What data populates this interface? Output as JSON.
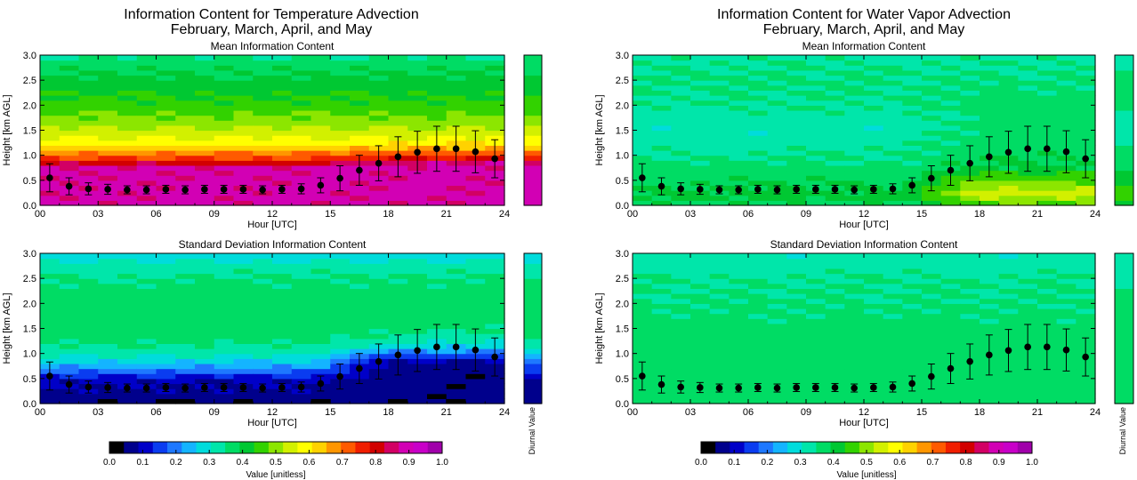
{
  "figure": {
    "left_title_line1": "Information Content for Temperature Advection",
    "left_title_line2": "February, March, April, and May",
    "right_title_line1": "Information Content for Water Vapor Advection",
    "right_title_line2": "February, March, April, and May",
    "mean_subtitle": "Mean Information Content",
    "std_subtitle": "Standard Deviation Information Content",
    "xlabel": "Hour [UTC]",
    "ylabel": "Height [km AGL]",
    "diurnal_label": "Diurnal Value",
    "colorbar_label": "Value [unitless]"
  },
  "chart_data": [
    {
      "type": "heatmap",
      "panel": "temperature-mean",
      "title": "Mean Information Content",
      "xlabel": "Hour [UTC]",
      "ylabel": "Height [km AGL]",
      "xlim": [
        0,
        24
      ],
      "ylim": [
        0,
        3
      ],
      "xticks": [
        "00",
        "03",
        "06",
        "09",
        "12",
        "15",
        "18",
        "21",
        "24"
      ],
      "yticks": [
        "0.0",
        "0.5",
        "1.0",
        "1.5",
        "2.0",
        "2.5",
        "3.0"
      ],
      "height_profile": {
        "heights": [
          0.0,
          0.25,
          0.5,
          0.75,
          0.85,
          0.95,
          1.05,
          1.15,
          1.25,
          1.4,
          1.6,
          1.8,
          2.0,
          2.25,
          2.5,
          2.75,
          3.0
        ],
        "early_values": [
          0.92,
          0.92,
          0.92,
          0.92,
          0.85,
          0.77,
          0.72,
          0.66,
          0.62,
          0.58,
          0.54,
          0.5,
          0.47,
          0.45,
          0.42,
          0.4,
          0.36
        ],
        "late_values": [
          0.92,
          0.92,
          0.92,
          0.92,
          0.9,
          0.82,
          0.76,
          0.68,
          0.63,
          0.58,
          0.54,
          0.5,
          0.47,
          0.45,
          0.42,
          0.4,
          0.36
        ]
      },
      "series": [
        {
          "x": [
            0.5,
            1.5,
            2.5,
            3.5,
            4.5,
            5.5,
            6.5,
            7.5,
            8.5,
            9.5,
            10.5,
            11.5,
            12.5,
            13.5,
            14.5,
            15.5,
            16.5,
            17.5,
            18.5,
            19.5,
            20.5,
            21.5,
            22.5,
            23.5
          ],
          "y": [
            0.55,
            0.38,
            0.33,
            0.32,
            0.31,
            0.31,
            0.32,
            0.31,
            0.32,
            0.32,
            0.32,
            0.31,
            0.32,
            0.33,
            0.4,
            0.54,
            0.7,
            0.84,
            0.97,
            1.06,
            1.13,
            1.13,
            1.07,
            0.93
          ],
          "err": [
            0.28,
            0.17,
            0.12,
            0.1,
            0.08,
            0.08,
            0.08,
            0.08,
            0.08,
            0.08,
            0.08,
            0.08,
            0.08,
            0.1,
            0.15,
            0.25,
            0.3,
            0.35,
            0.4,
            0.42,
            0.45,
            0.45,
            0.42,
            0.38
          ]
        }
      ]
    },
    {
      "type": "heatmap",
      "panel": "water-vapor-mean",
      "title": "Mean Information Content",
      "xlabel": "Hour [UTC]",
      "ylabel": "Height [km AGL]",
      "xlim": [
        0,
        24
      ],
      "ylim": [
        0,
        3
      ],
      "xticks": [
        "00",
        "03",
        "06",
        "09",
        "12",
        "15",
        "18",
        "21",
        "24"
      ],
      "yticks": [
        "0.0",
        "0.5",
        "1.0",
        "1.5",
        "2.0",
        "2.5",
        "3.0"
      ],
      "height_profile": {
        "heights": [
          0.0,
          0.1,
          0.25,
          0.5,
          0.75,
          1.0,
          1.5,
          2.0,
          2.5,
          3.0
        ],
        "early_values": [
          0.38,
          0.42,
          0.42,
          0.4,
          0.38,
          0.36,
          0.33,
          0.36,
          0.37,
          0.35
        ],
        "late_values": [
          0.48,
          0.52,
          0.56,
          0.5,
          0.42,
          0.4,
          0.38,
          0.38,
          0.37,
          0.35
        ]
      },
      "series": [
        {
          "x": [
            0.5,
            1.5,
            2.5,
            3.5,
            4.5,
            5.5,
            6.5,
            7.5,
            8.5,
            9.5,
            10.5,
            11.5,
            12.5,
            13.5,
            14.5,
            15.5,
            16.5,
            17.5,
            18.5,
            19.5,
            20.5,
            21.5,
            22.5,
            23.5
          ],
          "y": [
            0.55,
            0.38,
            0.33,
            0.32,
            0.31,
            0.31,
            0.32,
            0.31,
            0.32,
            0.32,
            0.32,
            0.31,
            0.32,
            0.33,
            0.4,
            0.54,
            0.7,
            0.84,
            0.97,
            1.06,
            1.13,
            1.13,
            1.07,
            0.93
          ],
          "err": [
            0.28,
            0.17,
            0.12,
            0.1,
            0.08,
            0.08,
            0.08,
            0.08,
            0.08,
            0.08,
            0.08,
            0.08,
            0.08,
            0.1,
            0.15,
            0.25,
            0.3,
            0.35,
            0.4,
            0.42,
            0.45,
            0.45,
            0.42,
            0.38
          ]
        }
      ]
    },
    {
      "type": "heatmap",
      "panel": "temperature-std",
      "title": "Standard Deviation Information Content",
      "xlabel": "Hour [UTC]",
      "ylabel": "Height [km AGL]",
      "xlim": [
        0,
        24
      ],
      "ylim": [
        0,
        3
      ],
      "xticks": [
        "00",
        "03",
        "06",
        "09",
        "12",
        "15",
        "18",
        "21",
        "24"
      ],
      "yticks": [
        "0.0",
        "0.5",
        "1.0",
        "1.5",
        "2.0",
        "2.5",
        "3.0"
      ],
      "height_profile": {
        "heights": [
          0.0,
          0.1,
          0.25,
          0.5,
          0.6,
          0.7,
          0.8,
          0.9,
          1.0,
          1.1,
          1.2,
          1.4,
          1.7,
          2.0,
          2.5,
          2.8,
          3.0
        ],
        "early_values": [
          0.03,
          0.07,
          0.08,
          0.1,
          0.17,
          0.22,
          0.26,
          0.3,
          0.33,
          0.35,
          0.37,
          0.39,
          0.39,
          0.39,
          0.37,
          0.33,
          0.28
        ],
        "late_values": [
          0.05,
          0.06,
          0.06,
          0.06,
          0.06,
          0.06,
          0.07,
          0.12,
          0.2,
          0.26,
          0.31,
          0.36,
          0.39,
          0.39,
          0.37,
          0.33,
          0.28
        ]
      },
      "series": [
        {
          "x": [
            0.5,
            1.5,
            2.5,
            3.5,
            4.5,
            5.5,
            6.5,
            7.5,
            8.5,
            9.5,
            10.5,
            11.5,
            12.5,
            13.5,
            14.5,
            15.5,
            16.5,
            17.5,
            18.5,
            19.5,
            20.5,
            21.5,
            22.5,
            23.5
          ],
          "y": [
            0.55,
            0.38,
            0.33,
            0.32,
            0.31,
            0.31,
            0.32,
            0.31,
            0.32,
            0.32,
            0.32,
            0.31,
            0.32,
            0.33,
            0.4,
            0.54,
            0.7,
            0.84,
            0.97,
            1.06,
            1.13,
            1.13,
            1.07,
            0.93
          ],
          "err": [
            0.28,
            0.17,
            0.12,
            0.1,
            0.08,
            0.08,
            0.08,
            0.08,
            0.08,
            0.08,
            0.08,
            0.08,
            0.08,
            0.1,
            0.15,
            0.25,
            0.3,
            0.35,
            0.4,
            0.42,
            0.45,
            0.45,
            0.42,
            0.38
          ]
        }
      ]
    },
    {
      "type": "heatmap",
      "panel": "water-vapor-std",
      "title": "Standard Deviation Information Content",
      "xlabel": "Hour [UTC]",
      "ylabel": "Height [km AGL]",
      "xlim": [
        0,
        24
      ],
      "ylim": [
        0,
        3
      ],
      "xticks": [
        "00",
        "03",
        "06",
        "09",
        "12",
        "15",
        "18",
        "21",
        "24"
      ],
      "yticks": [
        "0.0",
        "0.5",
        "1.0",
        "1.5",
        "2.0",
        "2.5",
        "3.0"
      ],
      "height_profile": {
        "heights": [
          0.0,
          0.5,
          1.0,
          1.5,
          2.0,
          2.5,
          2.8,
          3.0
        ],
        "early_values": [
          0.38,
          0.38,
          0.38,
          0.38,
          0.37,
          0.36,
          0.34,
          0.33
        ],
        "late_values": [
          0.39,
          0.39,
          0.39,
          0.38,
          0.37,
          0.36,
          0.34,
          0.33
        ]
      },
      "series": [
        {
          "x": [
            0.5,
            1.5,
            2.5,
            3.5,
            4.5,
            5.5,
            6.5,
            7.5,
            8.5,
            9.5,
            10.5,
            11.5,
            12.5,
            13.5,
            14.5,
            15.5,
            16.5,
            17.5,
            18.5,
            19.5,
            20.5,
            21.5,
            22.5,
            23.5
          ],
          "y": [
            0.55,
            0.38,
            0.33,
            0.32,
            0.31,
            0.31,
            0.32,
            0.31,
            0.32,
            0.32,
            0.32,
            0.31,
            0.32,
            0.33,
            0.4,
            0.54,
            0.7,
            0.84,
            0.97,
            1.06,
            1.13,
            1.13,
            1.07,
            0.93
          ],
          "err": [
            0.28,
            0.17,
            0.12,
            0.1,
            0.08,
            0.08,
            0.08,
            0.08,
            0.08,
            0.08,
            0.08,
            0.08,
            0.08,
            0.1,
            0.15,
            0.25,
            0.3,
            0.35,
            0.4,
            0.42,
            0.45,
            0.45,
            0.42,
            0.38
          ]
        }
      ]
    }
  ],
  "colorbar": {
    "ticks": [
      "0.0",
      "0.1",
      "0.2",
      "0.3",
      "0.4",
      "0.5",
      "0.6",
      "0.7",
      "0.8",
      "0.9",
      "1.0"
    ],
    "colors": [
      "#000000",
      "#00008c",
      "#0000c8",
      "#0a3cf0",
      "#1e78ff",
      "#14b4ff",
      "#00dcdc",
      "#00e6aa",
      "#00dc64",
      "#00c832",
      "#32d200",
      "#8ce600",
      "#d2f000",
      "#ffff00",
      "#ffd200",
      "#ff9600",
      "#ff5a00",
      "#f01e00",
      "#d20000",
      "#d20064",
      "#d200b4",
      "#c800c8",
      "#a000aa"
    ]
  }
}
